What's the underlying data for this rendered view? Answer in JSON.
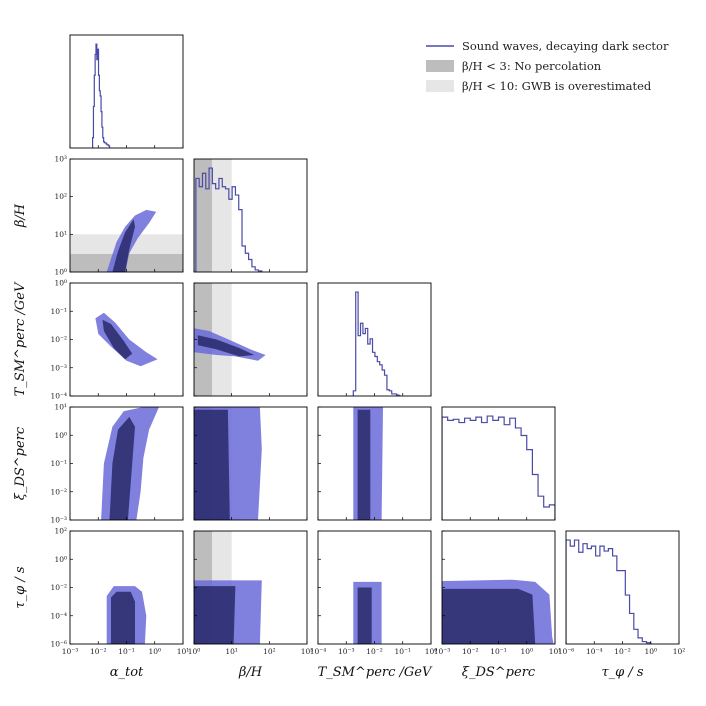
{
  "chart_data": {
    "type": "corner",
    "parameters": [
      {
        "key": "alpha",
        "label": "α_tot",
        "scale": "log",
        "range": [
          -3,
          1
        ],
        "ticks": [
          "10⁻³",
          "10⁻²",
          "10⁻¹",
          "10⁰",
          "10¹"
        ]
      },
      {
        "key": "beta",
        "label": "β/H",
        "scale": "log",
        "range": [
          0,
          3
        ],
        "ticks": [
          "10⁰",
          "10¹",
          "10²",
          "10³"
        ]
      },
      {
        "key": "T",
        "label": "T_SM^perc /GeV",
        "scale": "log",
        "range": [
          -4,
          0
        ],
        "ticks": [
          "10⁻⁴",
          "10⁻³",
          "10⁻²",
          "10⁻¹",
          "10⁰"
        ]
      },
      {
        "key": "xi",
        "label": "ξ_DS^perc",
        "scale": "log",
        "range": [
          -3,
          1
        ],
        "ticks": [
          "10⁻³",
          "10⁻²",
          "10⁻¹",
          "10⁰",
          "10¹"
        ]
      },
      {
        "key": "tau",
        "label": "τ_φ / s",
        "scale": "log",
        "range": [
          -6,
          2
        ],
        "ticks": [
          "10⁻⁶",
          "10⁻⁴",
          "10⁻²",
          "10⁰",
          "10²"
        ]
      }
    ],
    "legend": {
      "placement": "top-right",
      "entries": [
        {
          "label": "Sound waves, decaying dark sector",
          "kind": "line",
          "color": "#4a4aa8"
        },
        {
          "label": "β/H < 3: No percolation",
          "kind": "patch",
          "color": "#bdbdbd"
        },
        {
          "label": "β/H < 10: GWB is overestimated",
          "kind": "patch",
          "color": "#e6e6e6"
        }
      ]
    },
    "shaded_regions": [
      {
        "parameter": "beta",
        "max": 3,
        "color": "#bdbdbd",
        "label": "β/H < 3: No percolation"
      },
      {
        "parameter": "beta",
        "max": 10,
        "color": "#e6e6e6",
        "label": "β/H < 10: GWB is overestimated"
      }
    ],
    "colors": {
      "line": "#4a4aa8",
      "contour_outer": "#6a6ad8",
      "contour_inner": "#2d2d70"
    },
    "histograms": {
      "alpha": {
        "edges": [
          -2.2,
          -1.6
        ],
        "heights": [
          0.1,
          0.4,
          0.7,
          0.9,
          1.0,
          0.85,
          0.95,
          0.7,
          0.55,
          0.5,
          0.35,
          0.2,
          0.1,
          0.06,
          0.05,
          0.05,
          0.04,
          0.03,
          0.03,
          0.02
        ]
      },
      "beta": {
        "edges": [
          0.05,
          1.8
        ],
        "heights": [
          0.9,
          0.82,
          0.95,
          0.8,
          1.0,
          0.85,
          0.8,
          0.9,
          0.82,
          0.8,
          0.7,
          0.82,
          0.74,
          0.6,
          0.25,
          0.18,
          0.12,
          0.05,
          0.02,
          0.01
        ]
      },
      "T": {
        "edges": [
          -2.75,
          -1.05
        ],
        "heights": [
          0.05,
          1.0,
          0.58,
          0.7,
          0.6,
          0.65,
          0.5,
          0.55,
          0.42,
          0.38,
          0.33,
          0.3,
          0.25,
          0.2,
          0.06,
          0.05,
          0.02,
          0.02,
          0.01,
          0.0
        ]
      },
      "xi": {
        "edges": [
          -3.0,
          1.0
        ],
        "heights": [
          0.95,
          0.92,
          0.93,
          0.9,
          0.94,
          0.92,
          0.95,
          0.9,
          0.96,
          0.92,
          0.95,
          0.88,
          0.94,
          0.85,
          0.78,
          0.65,
          0.42,
          0.22,
          0.12,
          0.14
        ]
      },
      "tau": {
        "edges": [
          -6.0,
          0.0
        ],
        "heights": [
          0.85,
          0.8,
          0.85,
          0.75,
          0.82,
          0.78,
          0.8,
          0.72,
          0.8,
          0.76,
          0.78,
          0.72,
          0.6,
          0.6,
          0.4,
          0.25,
          0.12,
          0.05,
          0.02,
          0.01
        ]
      }
    },
    "pairs": [
      {
        "x": "alpha",
        "y": "beta",
        "outer": [
          [
            -1.7,
            0.0
          ],
          [
            -1.55,
            0.35
          ],
          [
            -1.35,
            0.8
          ],
          [
            -1.05,
            1.2
          ],
          [
            -0.7,
            1.5
          ],
          [
            -0.3,
            1.65
          ],
          [
            0.05,
            1.6
          ],
          [
            -0.2,
            1.3
          ],
          [
            -0.6,
            0.9
          ],
          [
            -0.9,
            0.5
          ],
          [
            -1.0,
            0.15
          ],
          [
            -1.0,
            0.0
          ]
        ],
        "inner": [
          [
            -1.5,
            0.0
          ],
          [
            -1.3,
            0.55
          ],
          [
            -1.05,
            1.05
          ],
          [
            -0.75,
            1.4
          ],
          [
            -0.7,
            1.2
          ],
          [
            -0.9,
            0.6
          ],
          [
            -1.05,
            0.0
          ]
        ]
      },
      {
        "x": "alpha",
        "y": "T",
        "outer": [
          [
            -2.1,
            -1.25
          ],
          [
            -1.8,
            -1.05
          ],
          [
            -1.4,
            -1.4
          ],
          [
            -0.9,
            -2.0
          ],
          [
            -0.3,
            -2.45
          ],
          [
            0.1,
            -2.7
          ],
          [
            -0.5,
            -2.95
          ],
          [
            -1.0,
            -2.75
          ],
          [
            -1.55,
            -2.25
          ],
          [
            -2.0,
            -1.8
          ]
        ],
        "inner": [
          [
            -1.85,
            -1.3
          ],
          [
            -1.55,
            -1.45
          ],
          [
            -1.1,
            -2.05
          ],
          [
            -0.8,
            -2.5
          ],
          [
            -1.05,
            -2.7
          ],
          [
            -1.45,
            -2.3
          ],
          [
            -1.8,
            -1.7
          ]
        ]
      },
      {
        "x": "alpha",
        "y": "xi",
        "outer": [
          [
            -1.9,
            -3.0
          ],
          [
            -1.8,
            -1.0
          ],
          [
            -1.5,
            0.3
          ],
          [
            -1.1,
            0.85
          ],
          [
            -0.4,
            1.0
          ],
          [
            0.15,
            1.0
          ],
          [
            -0.2,
            0.2
          ],
          [
            -0.4,
            -0.8
          ],
          [
            -0.5,
            -2.0
          ],
          [
            -0.65,
            -3.0
          ]
        ],
        "inner": [
          [
            -1.6,
            -3.0
          ],
          [
            -1.5,
            -1.0
          ],
          [
            -1.3,
            0.2
          ],
          [
            -0.9,
            0.65
          ],
          [
            -0.7,
            0.3
          ],
          [
            -0.8,
            -1.0
          ],
          [
            -0.95,
            -3.0
          ]
        ]
      },
      {
        "x": "alpha",
        "y": "tau",
        "outer": [
          [
            -1.7,
            -6.0
          ],
          [
            -1.7,
            -2.6
          ],
          [
            -1.45,
            -1.9
          ],
          [
            -0.7,
            -1.9
          ],
          [
            -0.45,
            -2.3
          ],
          [
            -0.3,
            -4.0
          ],
          [
            -0.35,
            -6.0
          ]
        ],
        "inner": [
          [
            -1.55,
            -6.0
          ],
          [
            -1.55,
            -2.7
          ],
          [
            -1.35,
            -2.3
          ],
          [
            -0.85,
            -2.3
          ],
          [
            -0.7,
            -3.0
          ],
          [
            -0.7,
            -6.0
          ]
        ]
      },
      {
        "x": "beta",
        "y": "T",
        "outer": [
          [
            0.0,
            -1.6
          ],
          [
            0.4,
            -1.7
          ],
          [
            1.0,
            -2.05
          ],
          [
            1.5,
            -2.35
          ],
          [
            1.9,
            -2.55
          ],
          [
            1.7,
            -2.75
          ],
          [
            1.1,
            -2.6
          ],
          [
            0.6,
            -2.55
          ],
          [
            0.0,
            -2.45
          ]
        ],
        "inner": [
          [
            0.1,
            -1.85
          ],
          [
            0.6,
            -2.0
          ],
          [
            1.2,
            -2.3
          ],
          [
            1.6,
            -2.55
          ],
          [
            1.2,
            -2.6
          ],
          [
            0.6,
            -2.35
          ],
          [
            0.1,
            -2.2
          ]
        ]
      },
      {
        "x": "beta",
        "y": "xi",
        "outer": [
          [
            0.0,
            -3.0
          ],
          [
            0.0,
            1.0
          ],
          [
            1.75,
            1.0
          ],
          [
            1.8,
            -0.5
          ],
          [
            1.7,
            -3.0
          ]
        ],
        "inner": [
          [
            0.0,
            -3.0
          ],
          [
            0.0,
            0.9
          ],
          [
            0.9,
            0.9
          ],
          [
            0.95,
            -3.0
          ]
        ]
      },
      {
        "x": "beta",
        "y": "tau",
        "outer": [
          [
            0.0,
            -6.0
          ],
          [
            0.0,
            -1.5
          ],
          [
            1.8,
            -1.5
          ],
          [
            1.75,
            -6.0
          ]
        ],
        "inner": [
          [
            0.0,
            -6.0
          ],
          [
            0.0,
            -1.9
          ],
          [
            1.1,
            -1.9
          ],
          [
            1.05,
            -6.0
          ]
        ]
      },
      {
        "x": "T",
        "y": "xi",
        "outer": [
          [
            -2.75,
            -3.0
          ],
          [
            -2.75,
            1.0
          ],
          [
            -1.7,
            1.0
          ],
          [
            -1.75,
            -3.0
          ]
        ],
        "inner": [
          [
            -2.6,
            -3.0
          ],
          [
            -2.6,
            0.9
          ],
          [
            -2.15,
            0.9
          ],
          [
            -2.15,
            -3.0
          ]
        ]
      },
      {
        "x": "T",
        "y": "tau",
        "outer": [
          [
            -2.75,
            -6.0
          ],
          [
            -2.75,
            -1.6
          ],
          [
            -1.75,
            -1.6
          ],
          [
            -1.75,
            -6.0
          ]
        ],
        "inner": [
          [
            -2.6,
            -6.0
          ],
          [
            -2.6,
            -2.0
          ],
          [
            -2.1,
            -2.0
          ],
          [
            -2.1,
            -6.0
          ]
        ]
      },
      {
        "x": "xi",
        "y": "tau",
        "outer": [
          [
            -3.0,
            -6.0
          ],
          [
            -3.0,
            -1.55
          ],
          [
            -0.5,
            -1.45
          ],
          [
            0.3,
            -1.6
          ],
          [
            0.8,
            -2.5
          ],
          [
            0.9,
            -5.5
          ],
          [
            0.95,
            -6.0
          ]
        ],
        "inner": [
          [
            -3.0,
            -6.0
          ],
          [
            -3.0,
            -2.1
          ],
          [
            -0.3,
            -2.1
          ],
          [
            0.2,
            -2.5
          ],
          [
            0.3,
            -6.0
          ]
        ]
      }
    ]
  }
}
